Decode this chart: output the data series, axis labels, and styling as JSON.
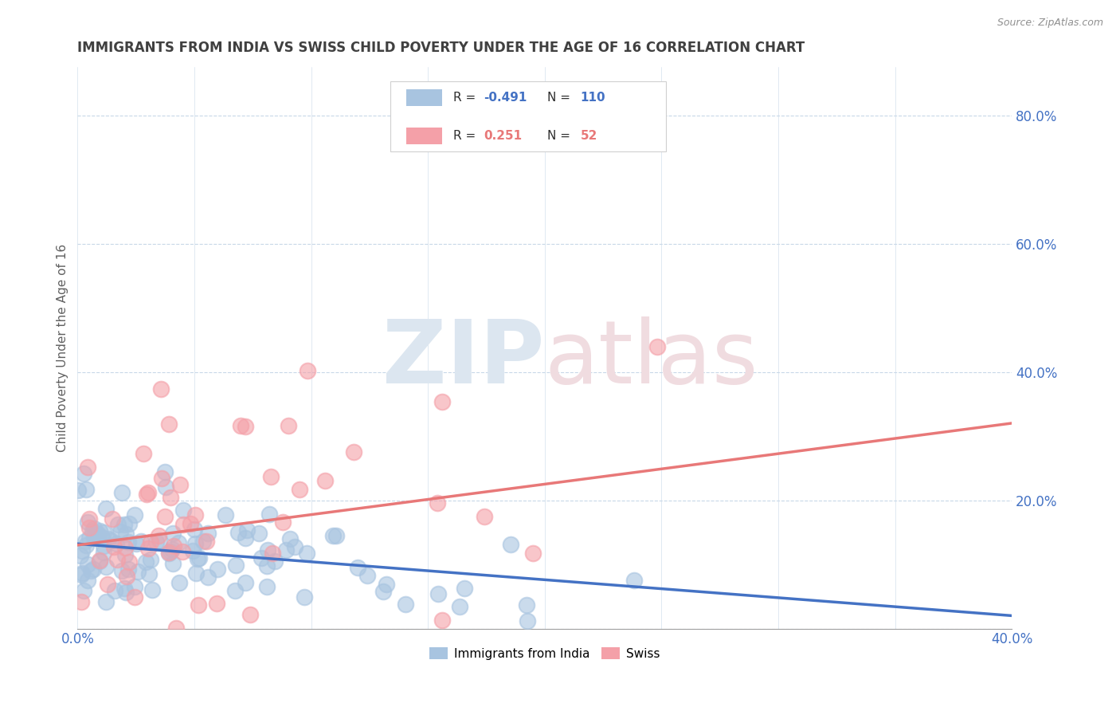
{
  "title": "IMMIGRANTS FROM INDIA VS SWISS CHILD POVERTY UNDER THE AGE OF 16 CORRELATION CHART",
  "source": "Source: ZipAtlas.com",
  "ylabel": "Child Poverty Under the Age of 16",
  "xlim": [
    0.0,
    0.4
  ],
  "ylim": [
    0.0,
    0.875
  ],
  "xticks": [
    0.0,
    0.4
  ],
  "xtick_labels": [
    "0.0%",
    "40.0%"
  ],
  "yticks": [
    0.0,
    0.2,
    0.4,
    0.6,
    0.8
  ],
  "ytick_labels_right": [
    "",
    "20.0%",
    "40.0%",
    "60.0%",
    "80.0%"
  ],
  "blue_R": -0.491,
  "blue_N": 110,
  "pink_R": 0.251,
  "pink_N": 52,
  "blue_color": "#a8c4e0",
  "pink_color": "#f4a0a8",
  "blue_line_color": "#4472c4",
  "pink_line_color": "#e87878",
  "title_color": "#404040",
  "axis_color": "#4472c4",
  "grid_color": "#c8d8e8",
  "background_color": "#ffffff",
  "title_fontsize": 12.0,
  "figsize": [
    14.06,
    8.92
  ],
  "dpi": 100,
  "blue_line_x0": 0.0,
  "blue_line_y0": 0.132,
  "blue_line_x1": 0.4,
  "blue_line_y1": 0.02,
  "pink_line_x0": 0.0,
  "pink_line_y0": 0.13,
  "pink_line_x1": 0.4,
  "pink_line_y1": 0.32
}
